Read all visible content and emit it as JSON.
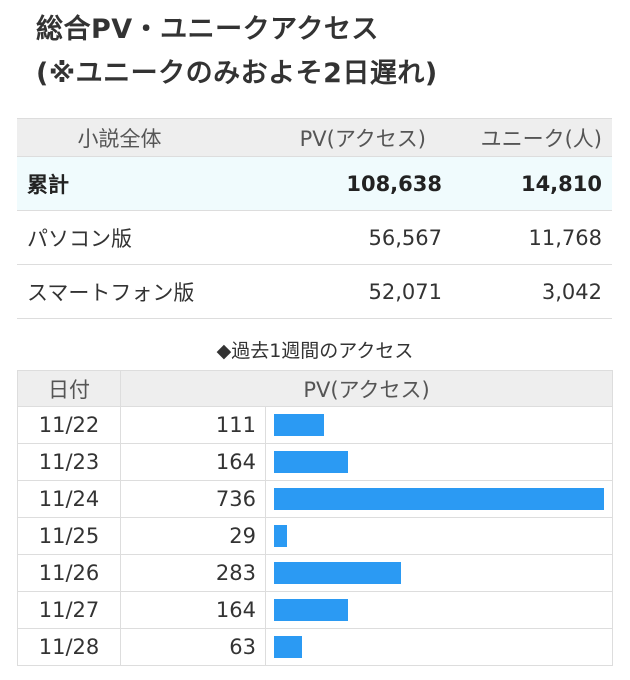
{
  "title": {
    "line1": "総合PV・ユニークアクセス",
    "line2": "(※ユニークのみおよそ2日遅れ)"
  },
  "summary": {
    "headers": [
      "小説全体",
      "PV(アクセス)",
      "ユニーク(人)"
    ],
    "rows": [
      {
        "label": "累計",
        "pv": "108,638",
        "unique": "14,810"
      },
      {
        "label": "パソコン版",
        "pv": "56,567",
        "unique": "11,768"
      },
      {
        "label": "スマートフォン版",
        "pv": "52,071",
        "unique": "3,042"
      }
    ]
  },
  "weekly": {
    "heading": "◆過去1週間のアクセス",
    "headers": [
      "日付",
      "PV(アクセス)"
    ],
    "max_pv": 736,
    "rows": [
      {
        "date": "11/22",
        "pv": 111
      },
      {
        "date": "11/23",
        "pv": 164
      },
      {
        "date": "11/24",
        "pv": 736
      },
      {
        "date": "11/25",
        "pv": 29
      },
      {
        "date": "11/26",
        "pv": 283
      },
      {
        "date": "11/27",
        "pv": 164
      },
      {
        "date": "11/28",
        "pv": 63
      }
    ]
  },
  "colors": {
    "bar": "#2b9af3",
    "header_bg": "#eeeeee",
    "total_row_bg": "#f0fbfd",
    "border": "#dddddd"
  }
}
